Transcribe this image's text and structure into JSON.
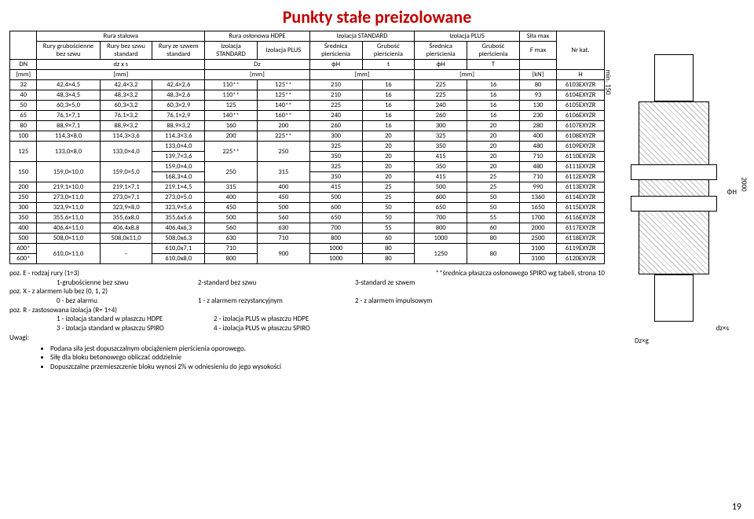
{
  "title": "Punkty stałe preizolowane",
  "header_groups": {
    "g1": "Rura stalowa",
    "g2": "Rura osłonowa HDPE",
    "g3": "Izolacja STANDARD",
    "g4": "Izolacja PLUS",
    "g5": "Siła max"
  },
  "header_row2": {
    "c1": "DN",
    "c2": "Rury grubościenne bez szwu",
    "c3": "Rury bez szwu standard",
    "c4": "Rury ze szwem standard",
    "c5": "Izolacja STANDARD",
    "c6": "Izolacja PLUS",
    "c7": "Średnica pierścienia",
    "c8": "Grubość pierścienia",
    "c9": "Średnica pierścienia",
    "c10": "Grubość pierścienia",
    "c11": "F max",
    "c12": "Nr kat."
  },
  "header_row3": {
    "c2": "dz x s",
    "c5": "Dz",
    "c7": "ϕH",
    "c8": "t",
    "c9": "ϕH",
    "c10": "T"
  },
  "header_row4": {
    "u1": "[mm]",
    "u2": "[mm]",
    "u3": "[mm]",
    "u4": "[mm]",
    "u5": "[mm]",
    "u6": "[kN]",
    "u7": "H"
  },
  "rows": [
    [
      "32",
      "42,4×4,5",
      "42,4×3,2",
      "42,4×2,6",
      "110**",
      "125**",
      "210",
      "16",
      "225",
      "16",
      "80",
      "6103EXYZR"
    ],
    [
      "40",
      "48,3×4,5",
      "48,3×3,2",
      "48,3×2,6",
      "110**",
      "125**",
      "210",
      "16",
      "225",
      "16",
      "93",
      "6104EXYZR"
    ],
    [
      "50",
      "60,3×5,0",
      "60,3×3,2",
      "60,3×2,9",
      "125",
      "140**",
      "225",
      "16",
      "240",
      "16",
      "130",
      "6105EXYZR"
    ],
    [
      "65",
      "76,1×7,1",
      "76,1×3,2",
      "76,1×2,9",
      "140**",
      "160**",
      "240",
      "16",
      "260",
      "16",
      "230",
      "6106EXYZR"
    ],
    [
      "80",
      "88,9×7,1",
      "88,9×3,2",
      "88,9×3,2",
      "160",
      "200",
      "260",
      "16",
      "300",
      "20",
      "280",
      "6107EXYZR"
    ],
    [
      "100",
      "114,3×8,0",
      "114,3×3,6",
      "114,3×3,6",
      "200",
      "225**",
      "300",
      "20",
      "325",
      "20",
      "400",
      "6108EXYZR"
    ]
  ],
  "row_125a": [
    "125",
    "133,0×8,0",
    "133,0×4,0",
    "133,0×4,0",
    "225**",
    "250",
    "325",
    "20",
    "350",
    "20",
    "480",
    "6109EXYZR"
  ],
  "row_125b": [
    "139,7×3,6",
    "350",
    "20",
    "415",
    "20",
    "710",
    "6110EXYZR"
  ],
  "row_150a": [
    "150",
    "159,0×10,0",
    "159,0×5,0",
    "159,0×4,0",
    "250",
    "315",
    "325",
    "20",
    "350",
    "20",
    "480",
    "6111EXYZR"
  ],
  "row_150b": [
    "168,3×4,0",
    "350",
    "20",
    "415",
    "25",
    "710",
    "6112EXYZR"
  ],
  "rows2": [
    [
      "200",
      "219,1×10,0",
      "219,1×7,1",
      "219,1×4,5",
      "315",
      "400",
      "415",
      "25",
      "500",
      "25",
      "990",
      "6113EXYZR"
    ],
    [
      "250",
      "273,0×11,0",
      "273,0×7,1",
      "273,0×5,0",
      "400",
      "450",
      "500",
      "25",
      "600",
      "50",
      "1360",
      "6114EXYZR"
    ],
    [
      "300",
      "323,9×11,0",
      "323,9×8,0",
      "323,9×5,6",
      "450",
      "500",
      "600",
      "50",
      "650",
      "50",
      "1650",
      "6115EXYZR"
    ],
    [
      "350",
      "355,6×11,0",
      "355,6x8,0",
      "355,6x5,6",
      "500",
      "560",
      "650",
      "50",
      "700",
      "55",
      "1700",
      "6116EXYZR"
    ],
    [
      "400",
      "406,4×11,0",
      "406,4x8,8",
      "406,4x6,3",
      "560",
      "630",
      "700",
      "55",
      "800",
      "60",
      "2000",
      "6117EXYZR"
    ],
    [
      "500",
      "508,0×11,0",
      "508,0x11,0",
      "508,0x6,3",
      "630",
      "710",
      "800",
      "60",
      "1000",
      "80",
      "2500",
      "6118EXYZR"
    ]
  ],
  "row_600a": [
    "600*",
    "610,0×11,0",
    "–",
    "610,0x7,1",
    "710",
    "900",
    "1000",
    "80",
    "1250",
    "80",
    "3100",
    "6119EXYZR"
  ],
  "row_600b": [
    "600*",
    "610,0x8,0",
    "800",
    "1000",
    "80",
    "3100",
    "6120EXYZR"
  ],
  "notes": {
    "pozE": "poz. E - rodzaj rury (1÷3)",
    "e1": "1-grubościenne bez szwu",
    "e2": "2-standard bez szwu",
    "e3": "3-standard ze szwem",
    "pozX": "poz. X - z alarmem lub bez (0, 1, 2)",
    "x0": "0 - bez alarmu",
    "x1": "1 - z alarmem rezystancyjnym",
    "x2": "2 - z alarmem impulsowym",
    "pozR": "poz. R - zastosowana izolacja (R= 1÷4)",
    "r1": "1 - izolacja standard w płaszczu HDPE",
    "r2": "2 - izolacja PLUS w płaszczu HDPE",
    "r3": "3 - izolacja standard w płaszczu SPIRO",
    "r4": "4 - izolacja PLUS w płaszczu SPIRO",
    "uwagi": "Uwagi:",
    "b1": "Podana siła jest dopuszczalnym obciążeniem pierścienia oporowego.",
    "b2": "Siłę dla bloku betonowego obliczać oddzielnie",
    "b3": "Dopuszczalne przemieszczenie bloku wynosi 2% w odniesieniu do jego wysokości",
    "starfoot": "**średnica płaszcza osłonowego SPIRO wg tabeli, strona 10"
  },
  "diagram": {
    "min150": "min. 150",
    "h2000": "2000",
    "phiH": "ΦH",
    "dzxs": "dz×s",
    "dzxg": "Dz×g"
  },
  "pagenum": "19"
}
